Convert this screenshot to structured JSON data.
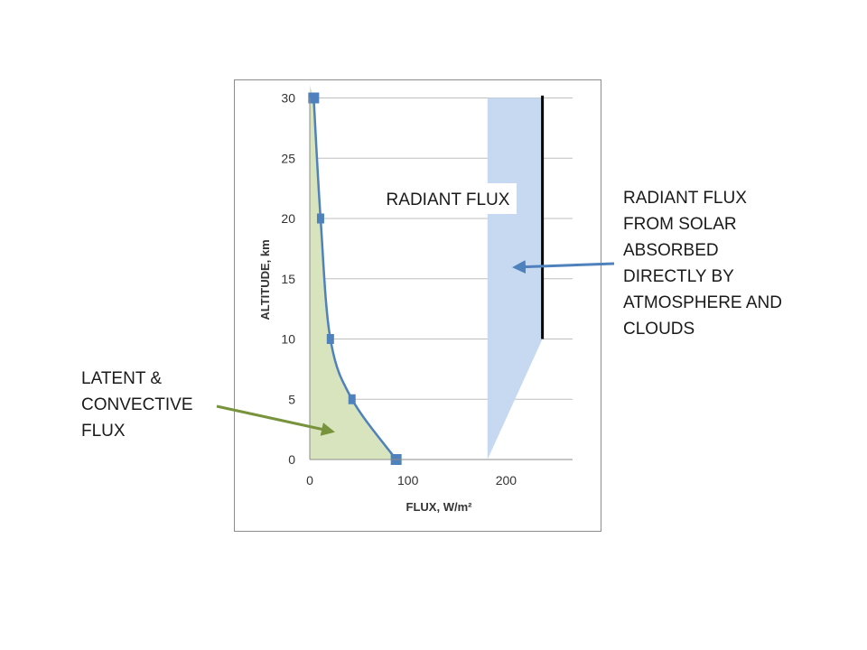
{
  "chart_data": {
    "type": "area",
    "xlabel": "FLUX, W/m²",
    "ylabel": "ALTITUDE, km",
    "xlim": [
      0,
      270
    ],
    "ylim": [
      0,
      30
    ],
    "x_ticks": [
      0,
      100,
      200
    ],
    "y_ticks": [
      0,
      5,
      10,
      15,
      20,
      25,
      30
    ],
    "grid": "horizontal",
    "series": [
      {
        "type": "line-with-markers-and-fill",
        "color": "#4f81bd",
        "marker_color": "#4f81bd",
        "fill_color": "#d7e4bd",
        "points": [
          {
            "x": 88,
            "y": 0
          },
          {
            "x": 43,
            "y": 5
          },
          {
            "x": 21,
            "y": 10
          },
          {
            "x": 11,
            "y": 20
          },
          {
            "x": 4,
            "y": 30
          }
        ]
      },
      {
        "type": "filled-region",
        "color": "#c6d9f1",
        "polygon": [
          {
            "x": 181,
            "y": 0
          },
          {
            "x": 237,
            "y": 10
          },
          {
            "x": 237,
            "y": 30
          },
          {
            "x": 181,
            "y": 30
          }
        ]
      },
      {
        "type": "vertical-line",
        "color": "#000000",
        "x": 237,
        "y_from": 10,
        "y_to": 30.2
      }
    ],
    "annotations": {
      "radiant_label": "RADIANT FLUX"
    }
  },
  "callouts": {
    "solar": [
      "RADIANT FLUX",
      "FROM SOLAR",
      "ABSORBED",
      "DIRECTLY BY",
      "ATMOSPHERE AND",
      "CLOUDS"
    ],
    "solar_arrow_color": "#4f81bd",
    "latent": [
      "LATENT &",
      "CONVECTIVE",
      "FLUX"
    ],
    "latent_arrow_color": "#77933c"
  }
}
